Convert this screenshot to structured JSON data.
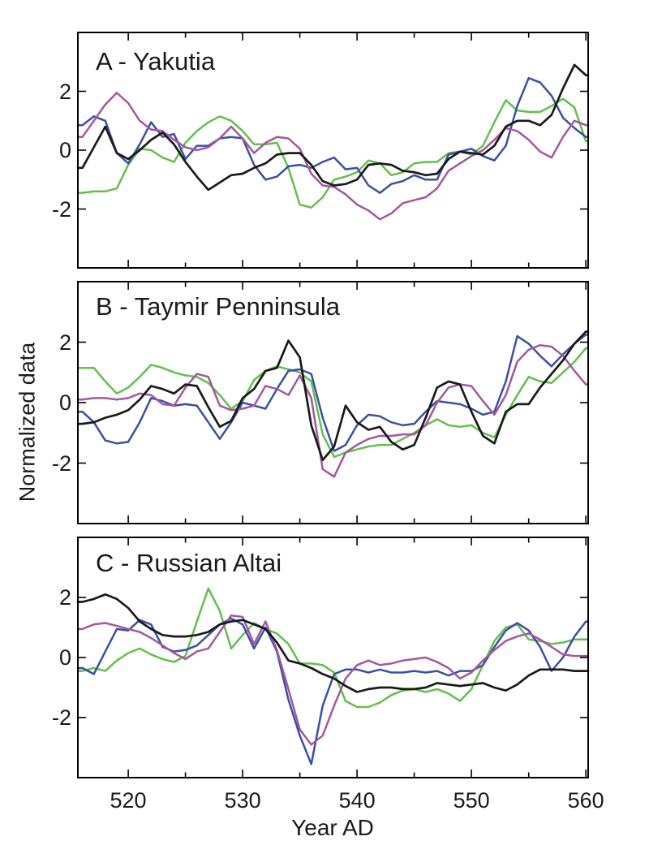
{
  "figure": {
    "xlabel": "Year AD",
    "ylabel": "Normalized data",
    "background": "#ffffff",
    "axis_color": "#000000",
    "text_color": "#1a1a1a"
  },
  "colors": {
    "black": "#1a1a1a",
    "blue": "#3a50a2",
    "green": "#62c04c",
    "purple": "#a4579f"
  },
  "chart_data": [
    {
      "type": "line",
      "panel": "A",
      "title": "A - Yakutia",
      "x_start": 516,
      "x_step": 1,
      "xlim": [
        515.6,
        560.2
      ],
      "ylim": [
        -4,
        4
      ],
      "yticks": [
        -2,
        0,
        2
      ],
      "xticks_major": [
        520,
        530,
        540,
        550,
        560
      ],
      "xticks_minor": [
        525,
        535,
        545,
        555
      ],
      "show_x_labels": false,
      "grid": false,
      "legend": "none",
      "series": [
        {
          "name": "green",
          "color_key": "green",
          "values": [
            -1.45,
            -1.4,
            -1.4,
            -1.3,
            -0.5,
            0.05,
            0,
            -0.25,
            -0.4,
            0.25,
            0.65,
            0.95,
            1.15,
            1,
            0.65,
            0.2,
            0.2,
            0.25,
            -0.6,
            -1.85,
            -1.95,
            -1.6,
            -1,
            -0.9,
            -0.75,
            -0.35,
            -0.45,
            -0.85,
            -0.75,
            -0.45,
            -0.4,
            -0.4,
            -0.1,
            -0.05,
            -0.15,
            0.15,
            0.95,
            1.7,
            1.35,
            1.3,
            1.3,
            1.5,
            1.75,
            1.45,
            0.3
          ]
        },
        {
          "name": "blue",
          "color_key": "blue",
          "values": [
            0.85,
            1.15,
            1,
            -0.1,
            -0.45,
            0.2,
            0.95,
            0.45,
            0.55,
            -0.3,
            0.15,
            0.15,
            0.4,
            0.45,
            0.4,
            -0.5,
            -1,
            -0.9,
            -0.55,
            -0.5,
            -0.6,
            -0.4,
            -0.25,
            -0.65,
            -0.6,
            -1.2,
            -1.45,
            -1.15,
            -1.05,
            -0.85,
            -1,
            -1,
            -0.15,
            -0.05,
            0.05,
            -0.2,
            -0.35,
            0.15,
            1.5,
            2.45,
            2.3,
            1.85,
            1.1,
            0.75,
            0.45
          ]
        },
        {
          "name": "purple",
          "color_key": "purple",
          "values": [
            0.45,
            1,
            1.55,
            1.95,
            1.6,
            1,
            0.7,
            0.65,
            0.35,
            0.1,
            0,
            0.1,
            0.4,
            0.8,
            0.4,
            -0.1,
            0.25,
            0.45,
            0.4,
            0.05,
            -0.8,
            -1.2,
            -1.25,
            -1.5,
            -1.85,
            -2.05,
            -2.35,
            -2.15,
            -1.8,
            -1.7,
            -1.6,
            -1.3,
            -0.7,
            -0.45,
            -0.2,
            0,
            0.35,
            0.75,
            0.65,
            0.35,
            -0.05,
            -0.25,
            0.45,
            1,
            0.85
          ]
        },
        {
          "name": "black",
          "color_key": "black",
          "values": [
            -0.6,
            0.1,
            0.8,
            -0.1,
            -0.3,
            0,
            0.35,
            0.6,
            0.2,
            -0.4,
            -0.9,
            -1.35,
            -1.1,
            -0.85,
            -0.8,
            -0.6,
            -0.45,
            -0.15,
            -0.1,
            -0.1,
            -0.5,
            -1.05,
            -1.2,
            -1.15,
            -1,
            -0.5,
            -0.45,
            -0.5,
            -0.7,
            -0.75,
            -0.85,
            -0.8,
            -0.3,
            -0.05,
            -0.1,
            -0.15,
            0.15,
            0.8,
            1,
            1,
            0.85,
            1.2,
            2.1,
            2.9,
            2.55
          ]
        }
      ]
    },
    {
      "type": "line",
      "panel": "B",
      "title": "B - Taymir Penninsula",
      "x_start": 516,
      "x_step": 1,
      "xlim": [
        515.6,
        560.2
      ],
      "ylim": [
        -4,
        4
      ],
      "yticks": [
        -2,
        0,
        2
      ],
      "xticks_major": [
        520,
        530,
        540,
        550,
        560
      ],
      "xticks_minor": [
        525,
        535,
        545,
        555
      ],
      "show_x_labels": false,
      "grid": false,
      "legend": "none",
      "series": [
        {
          "name": "green",
          "color_key": "green",
          "values": [
            1.15,
            1.15,
            0.7,
            0.3,
            0.5,
            0.85,
            1.25,
            1.15,
            1,
            0.9,
            0.85,
            0.65,
            0.25,
            -0.2,
            0.05,
            0.75,
            1.05,
            1.2,
            1.1,
            1,
            0.7,
            -1.05,
            -1.8,
            -1.65,
            -1.55,
            -1.45,
            -1.4,
            -1.4,
            -1.2,
            -1,
            -0.75,
            -0.55,
            -0.75,
            -0.8,
            -0.75,
            -1,
            -1.15,
            -0.4,
            0.25,
            0.85,
            0.7,
            0.65,
            1,
            1.35,
            1.8
          ]
        },
        {
          "name": "blue",
          "color_key": "blue",
          "values": [
            -0.3,
            -0.65,
            -1.25,
            -1.35,
            -1.3,
            -0.65,
            0.15,
            0.05,
            -0.1,
            -0.05,
            -0.1,
            -0.65,
            -1.2,
            -0.65,
            0,
            -0.1,
            -0.2,
            0.45,
            1.05,
            1.1,
            0.95,
            -0.5,
            -1.6,
            -1.4,
            -0.75,
            -0.4,
            -0.45,
            -0.65,
            -0.75,
            -0.7,
            -0.3,
            0.05,
            0,
            -0.05,
            -0.2,
            -0.4,
            -0.3,
            0.7,
            2.2,
            1.95,
            1.55,
            1.2,
            1.6,
            1.95,
            2.25
          ]
        },
        {
          "name": "purple",
          "color_key": "purple",
          "values": [
            0.1,
            0.15,
            0.15,
            0.1,
            0.15,
            0.3,
            0.25,
            -0.05,
            -0.1,
            0.5,
            0.95,
            0.85,
            -0.1,
            -0.25,
            -0.2,
            -0.1,
            0.55,
            0.45,
            0.25,
            0.9,
            0.15,
            -2.2,
            -2.45,
            -1.65,
            -1.4,
            -1.2,
            -1.1,
            -1.1,
            -1.05,
            -1.05,
            -0.75,
            0,
            0.5,
            0.6,
            0.55,
            0.05,
            -0.4,
            0.25,
            1.35,
            1.75,
            1.9,
            1.85,
            1.55,
            1.05,
            0.6
          ]
        },
        {
          "name": "black",
          "color_key": "black",
          "values": [
            -0.7,
            -0.65,
            -0.5,
            -0.4,
            -0.25,
            0.1,
            0.55,
            0.45,
            0.3,
            0.6,
            0.55,
            -0.15,
            -0.8,
            -0.6,
            0.15,
            0.45,
            1.05,
            1.15,
            2.05,
            1.5,
            -0.75,
            -1.9,
            -1.45,
            -0.1,
            -0.65,
            -0.9,
            -0.8,
            -1.3,
            -1.55,
            -1.4,
            -0.5,
            0.5,
            0.7,
            0.6,
            -0.3,
            -1.1,
            -1.35,
            -0.3,
            -0.05,
            -0.05,
            0.5,
            0.95,
            1.4,
            1.95,
            2.35
          ]
        }
      ]
    },
    {
      "type": "line",
      "panel": "C",
      "title": "C - Russian Altai",
      "x_start": 516,
      "x_step": 1,
      "xlim": [
        515.6,
        560.2
      ],
      "ylim": [
        -4,
        4
      ],
      "yticks": [
        -2,
        0,
        2
      ],
      "xticks_major": [
        520,
        530,
        540,
        550,
        560
      ],
      "xticks_minor": [
        525,
        535,
        545,
        555
      ],
      "show_x_labels": true,
      "x_tick_labels": [
        "520",
        "530",
        "540",
        "550",
        "560"
      ],
      "grid": false,
      "legend": "none",
      "series": [
        {
          "name": "green",
          "color_key": "green",
          "values": [
            -0.45,
            -0.35,
            -0.45,
            -0.1,
            0.15,
            0.3,
            0.1,
            -0.05,
            -0.15,
            0.05,
            1.2,
            2.3,
            1.55,
            0.3,
            0.75,
            1.15,
            0.95,
            0.8,
            0.45,
            -0.2,
            -0.2,
            -0.25,
            -0.5,
            -1.45,
            -1.65,
            -1.65,
            -1.5,
            -1.25,
            -1.1,
            -1.05,
            -1.15,
            -1.05,
            -1.2,
            -1.45,
            -1.05,
            -0.25,
            0.55,
            1,
            1.1,
            0.6,
            0.55,
            0.45,
            0.5,
            0.6,
            0.6
          ]
        },
        {
          "name": "blue",
          "color_key": "blue",
          "values": [
            -0.35,
            -0.55,
            0.2,
            0.95,
            0.9,
            1.25,
            1.1,
            0.35,
            0.2,
            0.25,
            0.4,
            0.75,
            1.1,
            1.3,
            1.1,
            0.3,
            1,
            0.2,
            -1.4,
            -2.6,
            -3.55,
            -1.6,
            -0.55,
            -0.4,
            -0.4,
            -0.5,
            -0.4,
            -0.5,
            -0.5,
            -0.45,
            -0.5,
            -0.45,
            -0.6,
            -0.45,
            -0.45,
            -0.25,
            0.35,
            0.9,
            1.15,
            0.9,
            0.35,
            -0.45,
            0,
            0.7,
            1.2
          ]
        },
        {
          "name": "purple",
          "color_key": "purple",
          "values": [
            0.95,
            1.1,
            1.15,
            1.05,
            0.95,
            0.85,
            0.65,
            0.4,
            0.15,
            -0.05,
            0.2,
            0.3,
            0.85,
            1.4,
            1.35,
            0.45,
            1.2,
            0.25,
            -1.05,
            -2.4,
            -2.9,
            -2.6,
            -1.6,
            -0.7,
            -0.25,
            -0.1,
            -0.25,
            -0.2,
            -0.1,
            -0.05,
            0,
            -0.15,
            -0.35,
            -0.7,
            -0.5,
            -0.1,
            0.25,
            0.55,
            0.7,
            0.8,
            0.6,
            0.35,
            0.1,
            0.05,
            0.05
          ]
        },
        {
          "name": "black",
          "color_key": "black",
          "values": [
            1.85,
            1.95,
            2.1,
            1.95,
            1.65,
            1.2,
            0.95,
            0.75,
            0.7,
            0.7,
            0.75,
            0.85,
            1.1,
            1.2,
            1.25,
            1.1,
            0.95,
            0.5,
            -0.1,
            -0.2,
            -0.35,
            -0.55,
            -0.7,
            -0.95,
            -1.15,
            -1.05,
            -1,
            -1,
            -1.05,
            -1.05,
            -1,
            -0.85,
            -0.9,
            -0.95,
            -0.9,
            -0.85,
            -1,
            -1.1,
            -0.9,
            -0.6,
            -0.4,
            -0.4,
            -0.4,
            -0.45,
            -0.45
          ]
        }
      ]
    }
  ]
}
